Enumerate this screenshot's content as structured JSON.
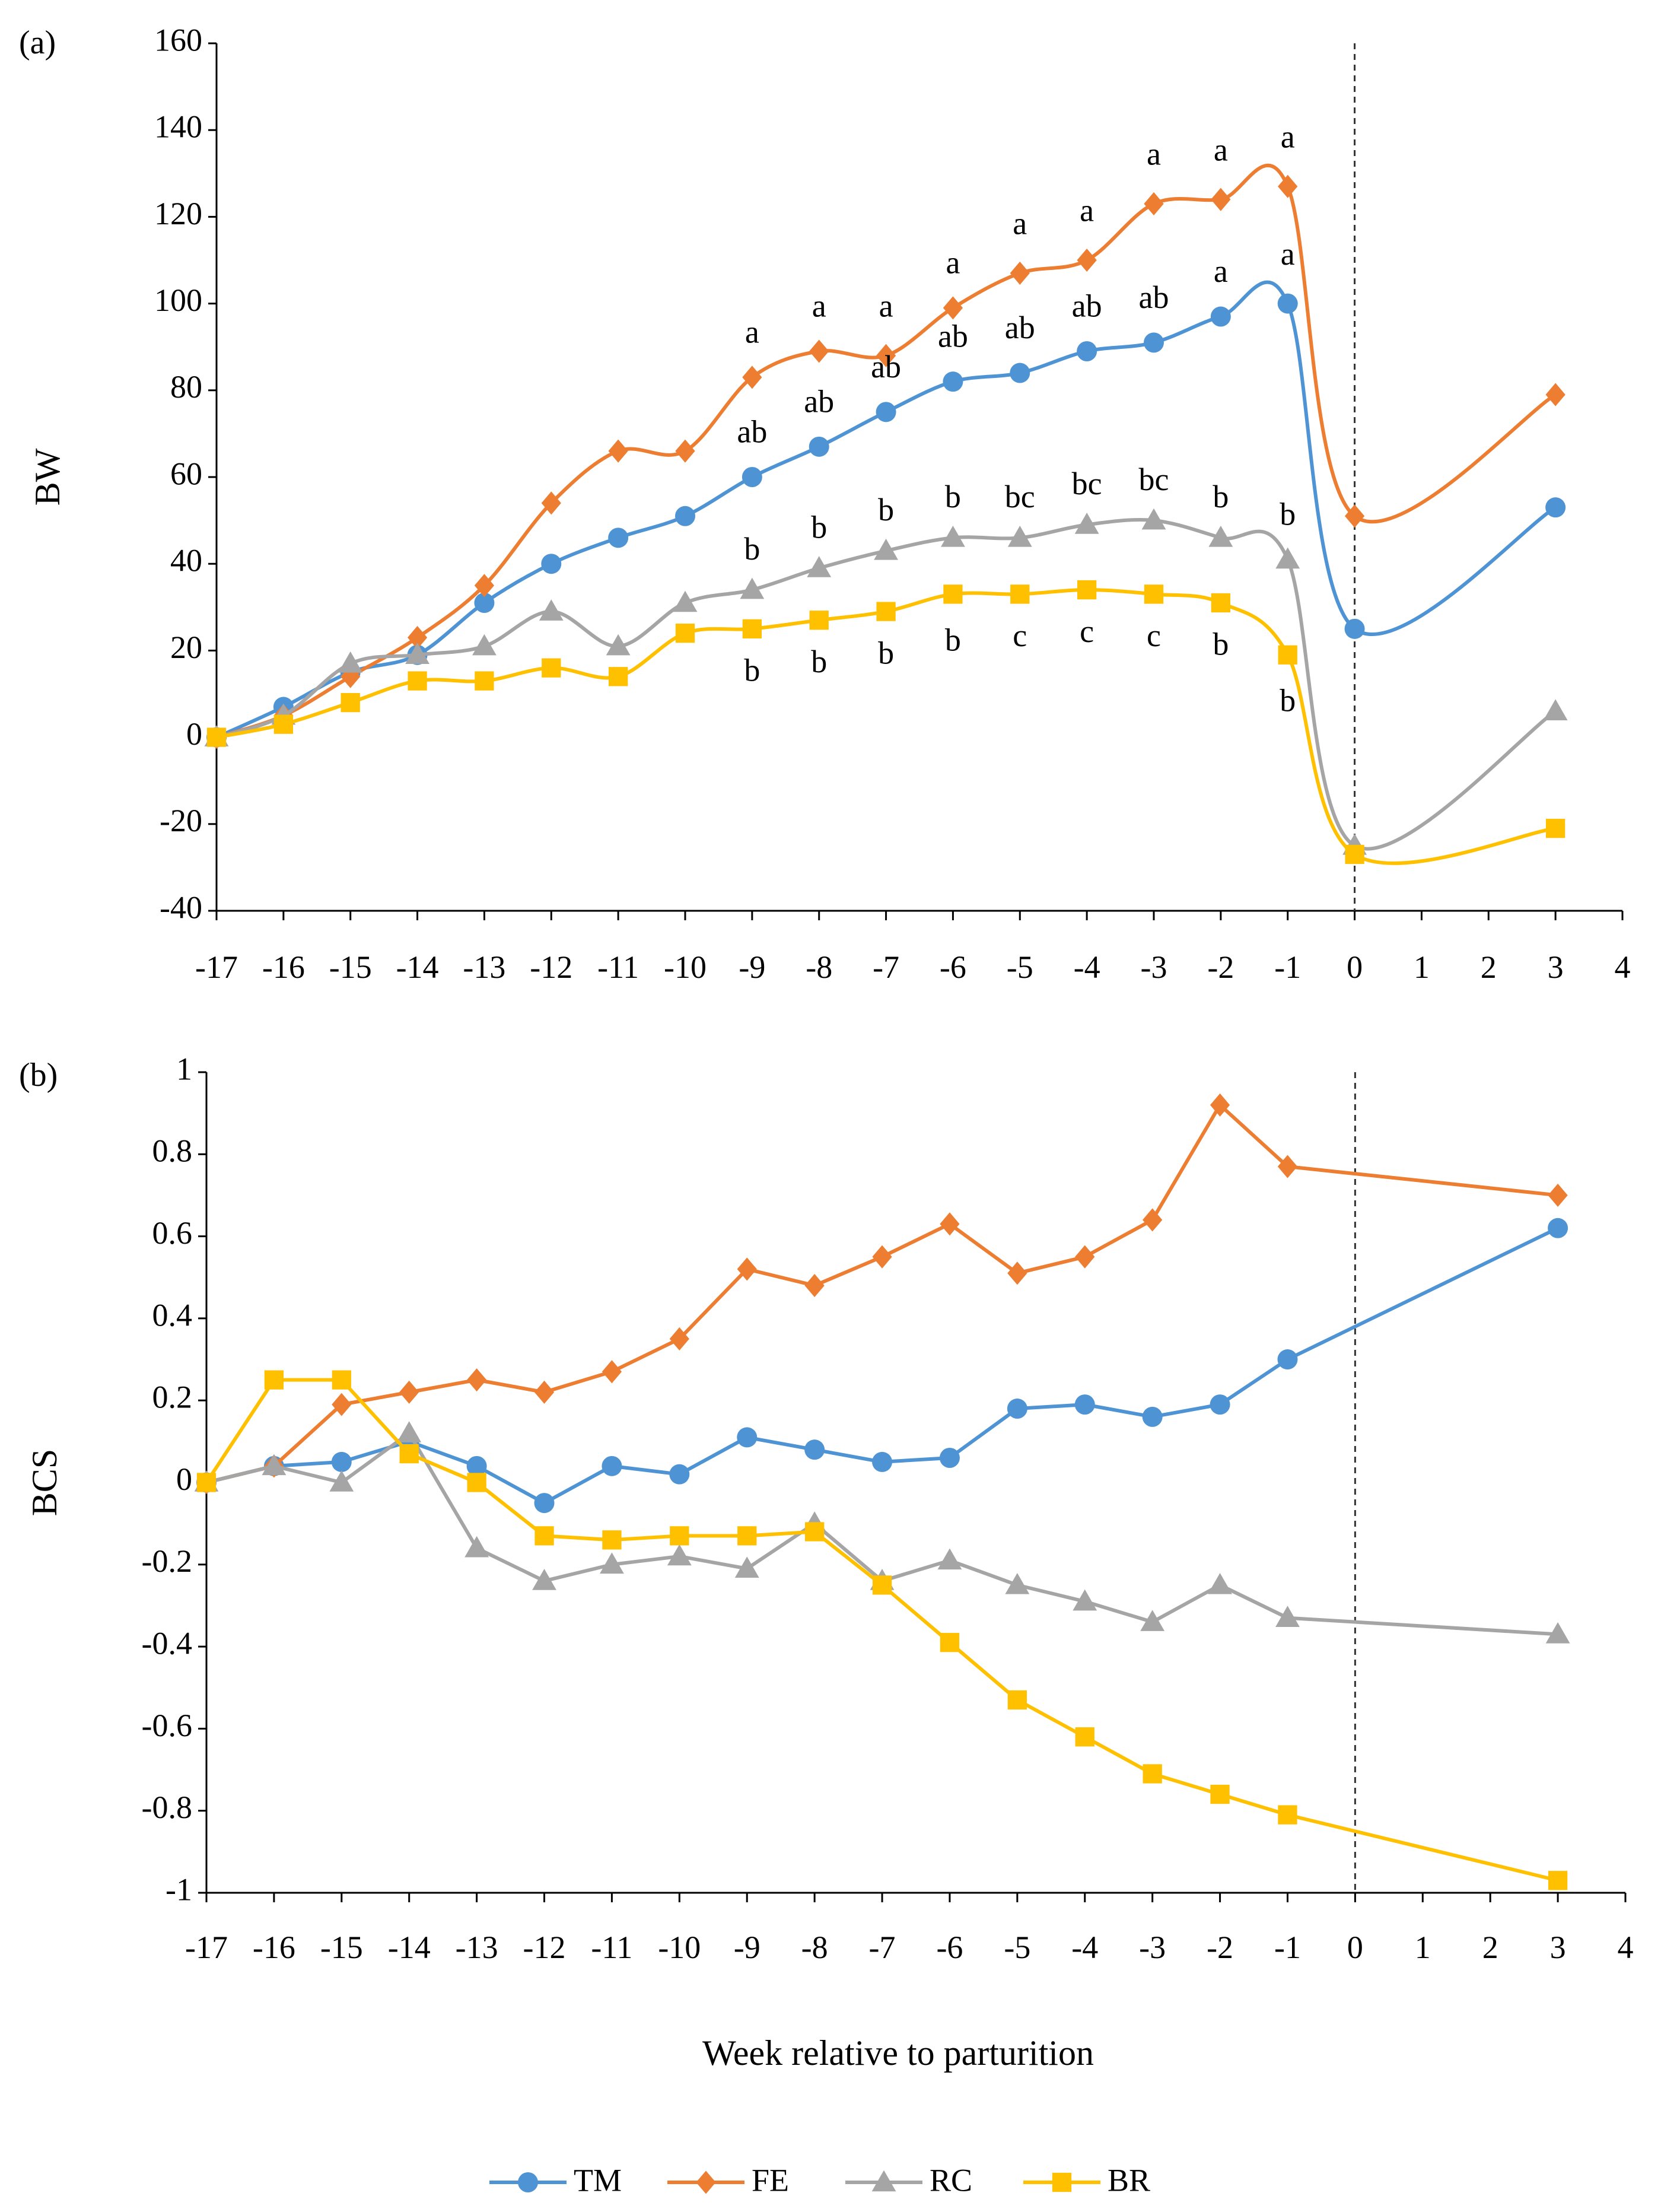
{
  "chart_data": [
    {
      "type": "line",
      "panel_label": "(a)",
      "ylabel": "BW",
      "xlabel": "",
      "ylim": [
        -40,
        160
      ],
      "y_ticks": [
        160,
        140,
        120,
        100,
        80,
        60,
        40,
        20,
        0,
        -20,
        -40
      ],
      "y_tick_labels": [
        "160",
        "140",
        "120",
        "100",
        "80",
        "60",
        "40",
        "20",
        "0",
        "-20",
        "-40"
      ],
      "xlim": [
        -17,
        4
      ],
      "x_ticks": [
        -17,
        -16,
        -15,
        -14,
        -13,
        -12,
        -11,
        -10,
        -9,
        -8,
        -7,
        -6,
        -5,
        -4,
        -3,
        -2,
        -1,
        0,
        1,
        2,
        3,
        4
      ],
      "x_tick_labels": [
        "-17",
        "-16",
        "-15",
        "-14",
        "-13",
        "-12",
        "-11",
        "-10",
        "-9",
        "-8",
        "-7",
        "-6",
        "-5",
        "-4",
        "-3",
        "-2",
        "-1",
        "0",
        "1",
        "2",
        "3",
        "4"
      ],
      "vline_x": 0,
      "x": [
        -17,
        -16,
        -15,
        -14,
        -13,
        -12,
        -11,
        -10,
        -9,
        -8,
        -7,
        -6,
        -5,
        -4,
        -3,
        -2,
        -1,
        0,
        3
      ],
      "series": [
        {
          "name": "TM",
          "color": "#4e94d4",
          "marker": "circle",
          "values": [
            0,
            7,
            15,
            19,
            31,
            40,
            46,
            51,
            60,
            67,
            75,
            82,
            84,
            89,
            91,
            97,
            100,
            25,
            53
          ]
        },
        {
          "name": "FE",
          "color": "#ed7d31",
          "marker": "diamond",
          "values": [
            0,
            5,
            14,
            23,
            35,
            54,
            66,
            66,
            83,
            89,
            88,
            99,
            107,
            110,
            123,
            124,
            127,
            51,
            79
          ]
        },
        {
          "name": "RC",
          "color": "#a5a5a5",
          "marker": "triangle",
          "values": [
            0,
            5,
            17,
            19,
            21,
            29,
            21,
            31,
            34,
            39,
            43,
            46,
            46,
            49,
            50,
            46,
            41,
            -25,
            6
          ]
        },
        {
          "name": "BR",
          "color": "#ffc000",
          "marker": "square",
          "values": [
            0,
            3,
            8,
            13,
            13,
            16,
            14,
            24,
            25,
            27,
            29,
            33,
            33,
            34,
            33,
            31,
            19,
            -27,
            -21
          ]
        }
      ],
      "annotations": [
        {
          "x": -9,
          "y": 91,
          "text": "a"
        },
        {
          "x": -8,
          "y": 97,
          "text": "a"
        },
        {
          "x": -7,
          "y": 97,
          "text": "a"
        },
        {
          "x": -6,
          "y": 107,
          "text": "a"
        },
        {
          "x": -5,
          "y": 116,
          "text": "a"
        },
        {
          "x": -4,
          "y": 119,
          "text": "a"
        },
        {
          "x": -3,
          "y": 132,
          "text": "a"
        },
        {
          "x": -2,
          "y": 133,
          "text": "a"
        },
        {
          "x": -1,
          "y": 136,
          "text": "a"
        },
        {
          "x": -9,
          "y": 68,
          "text": "ab"
        },
        {
          "x": -8,
          "y": 75,
          "text": "ab"
        },
        {
          "x": -7,
          "y": 83,
          "text": "ab"
        },
        {
          "x": -6,
          "y": 90,
          "text": "ab"
        },
        {
          "x": -5,
          "y": 92,
          "text": "ab"
        },
        {
          "x": -4,
          "y": 97,
          "text": "ab"
        },
        {
          "x": -3,
          "y": 99,
          "text": "ab"
        },
        {
          "x": -2,
          "y": 105,
          "text": "a"
        },
        {
          "x": -1,
          "y": 109,
          "text": "a"
        },
        {
          "x": -9,
          "y": 41,
          "text": "b"
        },
        {
          "x": -8,
          "y": 46,
          "text": "b"
        },
        {
          "x": -7,
          "y": 50,
          "text": "b"
        },
        {
          "x": -6,
          "y": 53,
          "text": "b"
        },
        {
          "x": -5,
          "y": 53,
          "text": "bc"
        },
        {
          "x": -4,
          "y": 56,
          "text": "bc"
        },
        {
          "x": -3,
          "y": 57,
          "text": "bc"
        },
        {
          "x": -2,
          "y": 53,
          "text": "b"
        },
        {
          "x": -1,
          "y": 49,
          "text": "b"
        },
        {
          "x": -9,
          "y": 13,
          "text": "b"
        },
        {
          "x": -8,
          "y": 15,
          "text": "b"
        },
        {
          "x": -7,
          "y": 17,
          "text": "b"
        },
        {
          "x": -6,
          "y": 20,
          "text": "b"
        },
        {
          "x": -5,
          "y": 21,
          "text": "c"
        },
        {
          "x": -4,
          "y": 22,
          "text": "c"
        },
        {
          "x": -3,
          "y": 21,
          "text": "c"
        },
        {
          "x": -2,
          "y": 19,
          "text": "b"
        },
        {
          "x": -1,
          "y": 6,
          "text": "b"
        }
      ]
    },
    {
      "type": "line",
      "panel_label": "(b)",
      "ylabel": "BCS",
      "xlabel": "Week relative to parturition",
      "ylim": [
        -1,
        1
      ],
      "y_ticks": [
        1,
        0.8,
        0.6,
        0.4,
        0.2,
        0,
        -0.2,
        -0.4,
        -0.6,
        -0.8,
        -1
      ],
      "y_tick_labels": [
        "1",
        "0.8",
        "0.6",
        "0.4",
        "0.2",
        "0",
        "-0.2",
        "-0.4",
        "-0.6",
        "-0.8",
        "-1"
      ],
      "xlim": [
        -17,
        4
      ],
      "x_ticks": [
        -17,
        -16,
        -15,
        -14,
        -13,
        -12,
        -11,
        -10,
        -9,
        -8,
        -7,
        -6,
        -5,
        -4,
        -3,
        -2,
        -1,
        0,
        1,
        2,
        3,
        4
      ],
      "x_tick_labels": [
        "-17",
        "-16",
        "-15",
        "-14",
        "-13",
        "-12",
        "-11",
        "-10",
        "-9",
        "-8",
        "-7",
        "-6",
        "-5",
        "-4",
        "-3",
        "-2",
        "-1",
        "0",
        "1",
        "2",
        "3",
        "4"
      ],
      "vline_x": 0,
      "x": [
        -17,
        -16,
        -15,
        -14,
        -13,
        -12,
        -11,
        -10,
        -9,
        -8,
        -7,
        -6,
        -5,
        -4,
        -3,
        -2,
        -1,
        3
      ],
      "series": [
        {
          "name": "TM",
          "color": "#4e94d4",
          "marker": "circle",
          "values": [
            0,
            0.04,
            0.05,
            0.1,
            0.04,
            -0.05,
            0.04,
            0.02,
            0.11,
            0.08,
            0.05,
            0.06,
            0.18,
            0.19,
            0.16,
            0.19,
            0.3,
            0.62
          ]
        },
        {
          "name": "FE",
          "color": "#ed7d31",
          "marker": "diamond",
          "values": [
            0,
            0.04,
            0.19,
            0.22,
            0.25,
            0.22,
            0.27,
            0.35,
            0.52,
            0.48,
            0.55,
            0.63,
            0.51,
            0.55,
            0.64,
            0.92,
            0.77,
            0.7
          ]
        },
        {
          "name": "RC",
          "color": "#a5a5a5",
          "marker": "triangle",
          "values": [
            0,
            0.04,
            0.0,
            0.12,
            -0.16,
            -0.24,
            -0.2,
            -0.18,
            -0.21,
            -0.1,
            -0.24,
            -0.19,
            -0.25,
            -0.29,
            -0.34,
            -0.25,
            -0.33,
            -0.37
          ]
        },
        {
          "name": "BR",
          "color": "#ffc000",
          "marker": "square",
          "values": [
            0,
            0.25,
            0.25,
            0.07,
            0.0,
            -0.13,
            -0.14,
            -0.13,
            -0.13,
            -0.12,
            -0.25,
            -0.39,
            -0.53,
            -0.62,
            -0.71,
            -0.76,
            -0.81,
            -0.97
          ]
        }
      ],
      "annotations": []
    }
  ],
  "legend": {
    "position": "bottom-center",
    "items": [
      {
        "name": "TM",
        "color": "#4e94d4",
        "marker": "circle"
      },
      {
        "name": "FE",
        "color": "#ed7d31",
        "marker": "diamond"
      },
      {
        "name": "RC",
        "color": "#a5a5a5",
        "marker": "triangle"
      },
      {
        "name": "BR",
        "color": "#ffc000",
        "marker": "square"
      }
    ]
  }
}
